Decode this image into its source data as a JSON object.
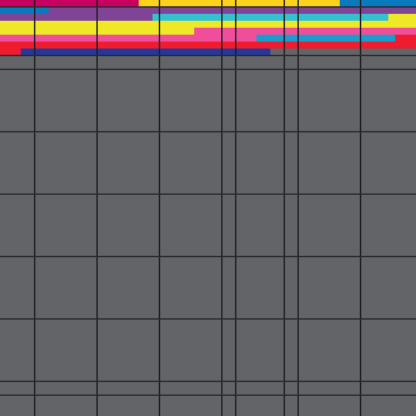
{
  "palette": {
    "background": "#636468",
    "grid_line": "#1e1e22",
    "magenta": "#c8005f",
    "gold": "#fdd21c",
    "blue": "#0a7ac0",
    "purple": "#7f4496",
    "cyan": "#35c2d0",
    "yellow": "#eee827",
    "pink": "#f04e9a",
    "sky": "#1a9ccc",
    "red": "#ee1c2e",
    "navy": "#24379a"
  }
}
